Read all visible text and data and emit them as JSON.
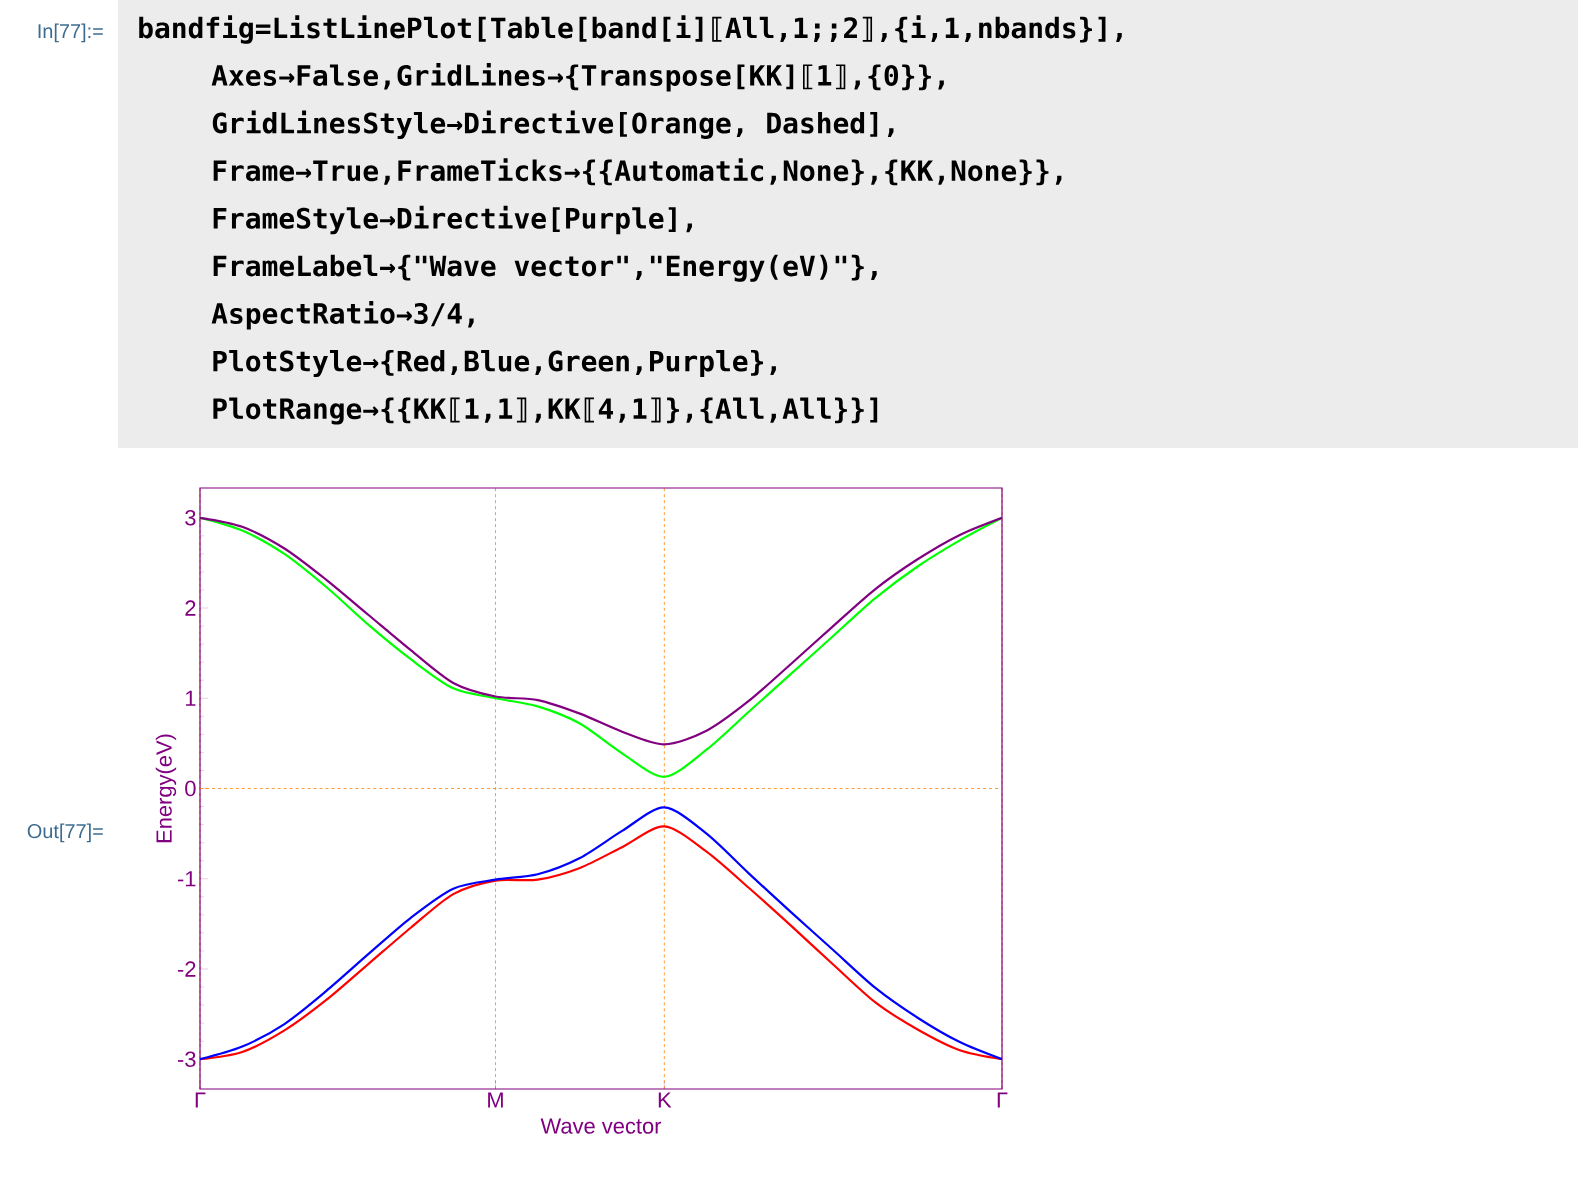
{
  "chart_data": {
    "type": "line",
    "xlabel": "Wave vector",
    "ylabel": "Energy(eV)",
    "categories": [
      "Γ",
      null,
      null,
      null,
      null,
      null,
      null,
      "M",
      null,
      null,
      null,
      "K",
      null,
      null,
      null,
      null,
      null,
      null,
      null,
      "Γ"
    ],
    "series": [
      {
        "color": "#ff0000",
        "values": [
          -3.0,
          -2.92,
          -2.68,
          -2.34,
          -1.94,
          -1.54,
          -1.17,
          -1.02,
          -1.01,
          -0.88,
          -0.65,
          -0.42,
          -0.7,
          -1.1,
          -1.52,
          -1.95,
          -2.37,
          -2.67,
          -2.9,
          -3.0
        ]
      },
      {
        "color": "#0000ff",
        "values": [
          -3.0,
          -2.86,
          -2.61,
          -2.24,
          -1.83,
          -1.43,
          -1.11,
          -1.01,
          -0.95,
          -0.77,
          -0.47,
          -0.21,
          -0.5,
          -0.94,
          -1.37,
          -1.79,
          -2.21,
          -2.54,
          -2.81,
          -3.0
        ]
      },
      {
        "color": "#00ff00",
        "values": [
          3.0,
          2.86,
          2.6,
          2.23,
          1.81,
          1.43,
          1.11,
          1.0,
          0.91,
          0.72,
          0.39,
          0.13,
          0.43,
          0.85,
          1.27,
          1.69,
          2.11,
          2.46,
          2.75,
          3.0
        ]
      },
      {
        "color": "#800080",
        "values": [
          3.0,
          2.9,
          2.66,
          2.31,
          1.92,
          1.53,
          1.17,
          1.02,
          0.98,
          0.83,
          0.63,
          0.49,
          0.64,
          0.97,
          1.38,
          1.8,
          2.21,
          2.54,
          2.81,
          3.0
        ]
      }
    ],
    "ylim": [
      -3.33,
      3.33
    ],
    "yticks": [
      -3,
      -2,
      -1,
      0,
      1,
      2,
      3
    ],
    "grid": "x",
    "ref_lines": [
      {
        "axis": "y",
        "value": 0,
        "color": "#ff8000",
        "line_style": "dashed"
      }
    ],
    "line_style": "solid",
    "annotations": [
      "In[77]:=",
      "bandfig=ListLinePlot[Table[band[i]⟦All,1;;2⟧,{i,1,nbands}],",
      "Axes→False,GridLines→{Transpose[KK]⟦1⟧,{0}},",
      "GridLinesStyle→Directive[Orange, Dashed],",
      "Frame→True,FrameTicks→{{Automatic,None},{KK,None}},",
      "FrameStyle→Directive[Purple],",
      "FrameLabel→{\"Wave vector\",\"Energy(eV)\"},",
      "AspectRatio→3/4,",
      "PlotStyle→{Red,Blue,Green,Purple},",
      "PlotRange→{{KK⟦1,1⟧,KK⟦4,1⟧},{All,All}}]",
      "Out[77]="
    ]
  }
}
